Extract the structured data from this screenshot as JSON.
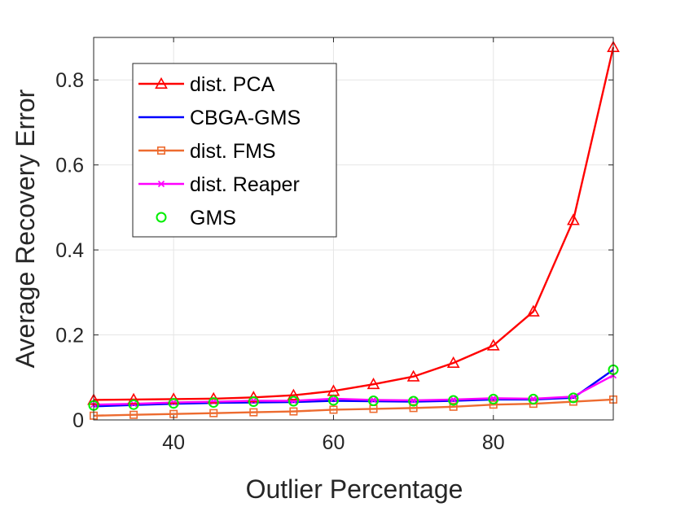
{
  "chart_data": {
    "type": "line",
    "title": "",
    "xlabel": "Outlier Percentage",
    "ylabel": "Average Recovery Error",
    "xlim": [
      30,
      95
    ],
    "ylim": [
      0,
      0.9
    ],
    "xticks": [
      40,
      60,
      80
    ],
    "yticks": [
      0,
      0.2,
      0.4,
      0.6,
      0.8
    ],
    "xtick_labels": [
      "40",
      "60",
      "80"
    ],
    "ytick_labels": [
      "0",
      "0.2",
      "0.4",
      "0.6",
      "0.8"
    ],
    "grid": true,
    "legend_position": "top-left",
    "x": [
      30,
      35,
      40,
      45,
      50,
      55,
      60,
      65,
      70,
      75,
      80,
      85,
      90,
      95
    ],
    "series": [
      {
        "name": "dist. PCA",
        "color": "#ff0000",
        "marker": "triangle",
        "line": true,
        "values": [
          0.047,
          0.048,
          0.049,
          0.05,
          0.053,
          0.058,
          0.068,
          0.084,
          0.102,
          0.134,
          0.175,
          0.255,
          0.47,
          0.877
        ]
      },
      {
        "name": "CBGA-GMS",
        "color": "#0000ff",
        "marker": "none",
        "line": true,
        "values": [
          0.032,
          0.035,
          0.038,
          0.04,
          0.041,
          0.042,
          0.045,
          0.044,
          0.043,
          0.045,
          0.048,
          0.048,
          0.052,
          0.118
        ]
      },
      {
        "name": "dist. FMS",
        "color": "#ed6b2f",
        "marker": "square",
        "line": true,
        "values": [
          0.01,
          0.012,
          0.014,
          0.016,
          0.018,
          0.02,
          0.024,
          0.026,
          0.028,
          0.031,
          0.036,
          0.038,
          0.043,
          0.048
        ]
      },
      {
        "name": "dist. Reaper",
        "color": "#ff00ff",
        "marker": "x",
        "line": true,
        "values": [
          0.036,
          0.038,
          0.041,
          0.043,
          0.045,
          0.045,
          0.05,
          0.047,
          0.046,
          0.048,
          0.051,
          0.05,
          0.055,
          0.105
        ]
      },
      {
        "name": "GMS",
        "color": "#00ee00",
        "marker": "circle",
        "line": false,
        "values": [
          0.034,
          0.036,
          0.039,
          0.041,
          0.043,
          0.044,
          0.046,
          0.045,
          0.044,
          0.046,
          0.049,
          0.049,
          0.052,
          0.118
        ]
      }
    ]
  }
}
